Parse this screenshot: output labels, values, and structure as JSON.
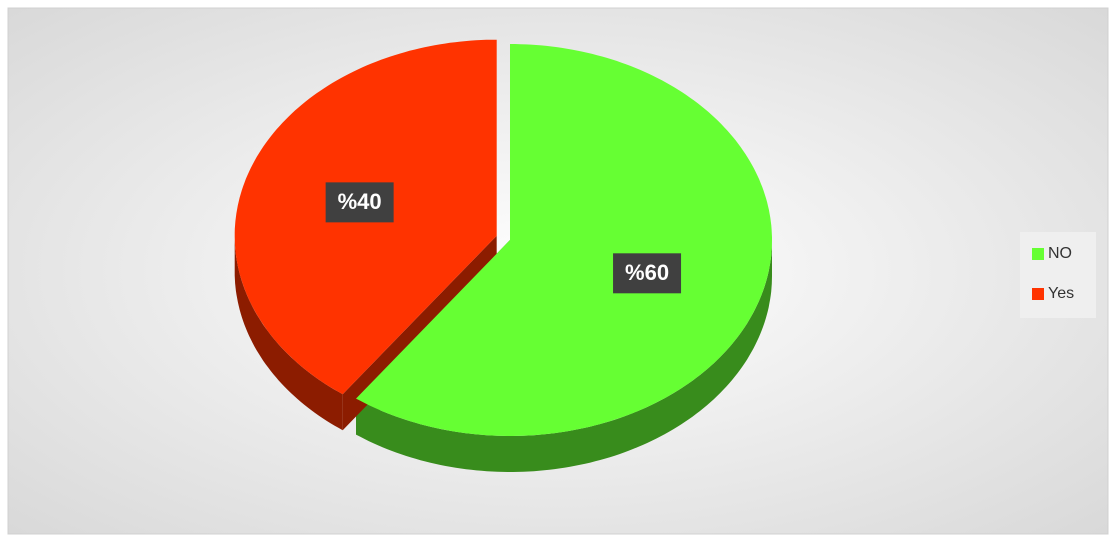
{
  "chart_data": {
    "type": "pie",
    "categories": [
      "NO",
      "Yes"
    ],
    "values": [
      60,
      40
    ],
    "value_labels": [
      "%60",
      "%40"
    ],
    "colors": [
      "#66ff33",
      "#ff3300"
    ],
    "legend": "right"
  }
}
